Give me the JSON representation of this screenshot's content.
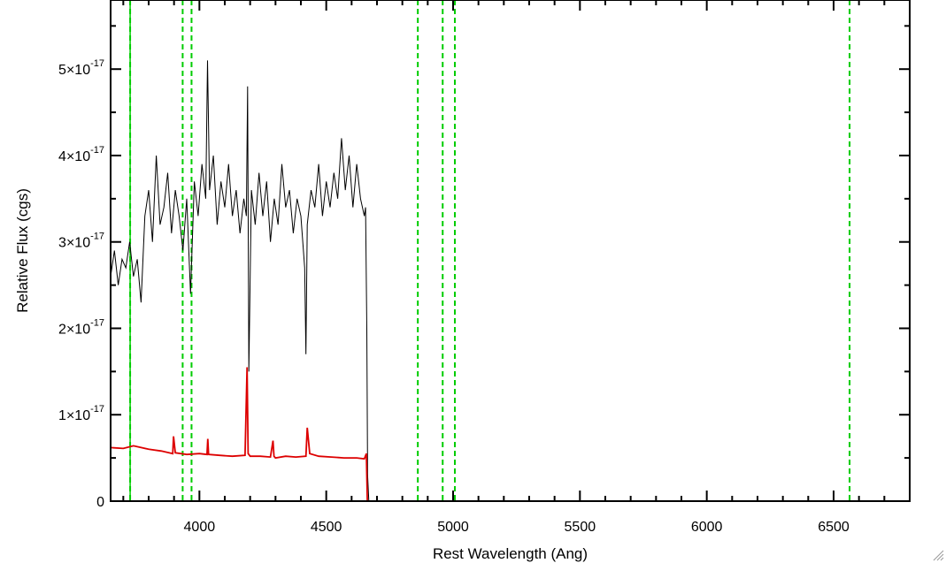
{
  "chart_data": {
    "type": "line",
    "xlabel": "Rest Wavelength (Ang)",
    "ylabel": "Relative Flux (cgs)",
    "xlim": [
      3650,
      6800
    ],
    "ylim": [
      0,
      5.8e-17
    ],
    "x_ticks": [
      {
        "value": 4000,
        "label": "4000"
      },
      {
        "value": 4500,
        "label": "4500"
      },
      {
        "value": 5000,
        "label": "5000"
      },
      {
        "value": 5500,
        "label": "5500"
      },
      {
        "value": 6000,
        "label": "6000"
      },
      {
        "value": 6500,
        "label": "6500"
      }
    ],
    "y_ticks": [
      {
        "value": 0,
        "mantissa": "0",
        "exponent": ""
      },
      {
        "value": 1e-17,
        "mantissa": "1×10",
        "exponent": "-17"
      },
      {
        "value": 2e-17,
        "mantissa": "2×10",
        "exponent": "-17"
      },
      {
        "value": 3e-17,
        "mantissa": "3×10",
        "exponent": "-17"
      },
      {
        "value": 4e-17,
        "mantissa": "4×10",
        "exponent": "-17"
      },
      {
        "value": 5e-17,
        "mantissa": "5×10",
        "exponent": "-17"
      }
    ],
    "reference_lines": [
      {
        "x": 3727,
        "color": "#00cc00",
        "style": "dashed"
      },
      {
        "x": 3934,
        "color": "#00cc00",
        "style": "dashed"
      },
      {
        "x": 3969,
        "color": "#00cc00",
        "style": "dashed"
      },
      {
        "x": 4861,
        "color": "#00cc00",
        "style": "dashed"
      },
      {
        "x": 4959,
        "color": "#00cc00",
        "style": "dashed"
      },
      {
        "x": 5007,
        "color": "#00cc00",
        "style": "dashed"
      },
      {
        "x": 6563,
        "color": "#00cc00",
        "style": "dashed"
      },
      {
        "x": 3727,
        "color": "#00cc00",
        "style": "solid"
      }
    ],
    "series": [
      {
        "color": "#000000",
        "x": [
          3650,
          3665,
          3680,
          3695,
          3710,
          3725,
          3740,
          3755,
          3770,
          3785,
          3800,
          3815,
          3830,
          3845,
          3860,
          3875,
          3890,
          3905,
          3920,
          3935,
          3950,
          3965,
          3980,
          3995,
          4010,
          4025,
          4032,
          4040,
          4055,
          4070,
          4085,
          4100,
          4115,
          4130,
          4145,
          4160,
          4175,
          4185,
          4190,
          4195,
          4205,
          4220,
          4235,
          4250,
          4265,
          4280,
          4295,
          4310,
          4325,
          4340,
          4355,
          4370,
          4385,
          4400,
          4415,
          4420,
          4425,
          4440,
          4455,
          4470,
          4485,
          4500,
          4515,
          4530,
          4545,
          4560,
          4575,
          4590,
          4605,
          4620,
          4635,
          4650,
          4655,
          4660,
          4663,
          4668,
          4700,
          5000,
          5500,
          6000,
          6500,
          6800
        ],
        "y": [
          2.6e-17,
          2.9e-17,
          2.5e-17,
          2.8e-17,
          2.7e-17,
          3e-17,
          2.6e-17,
          2.8e-17,
          2.3e-17,
          3.3e-17,
          3.6e-17,
          3e-17,
          4e-17,
          3.2e-17,
          3.4e-17,
          3.8e-17,
          3.1e-17,
          3.6e-17,
          3.3e-17,
          2.9e-17,
          3.5e-17,
          2.4e-17,
          3.7e-17,
          3.3e-17,
          3.9e-17,
          3.5e-17,
          5.1e-17,
          3.6e-17,
          4e-17,
          3.2e-17,
          3.7e-17,
          3.4e-17,
          3.9e-17,
          3.3e-17,
          3.6e-17,
          3.1e-17,
          3.5e-17,
          3.3e-17,
          4.8e-17,
          1.5e-17,
          3.6e-17,
          3.2e-17,
          3.8e-17,
          3.3e-17,
          3.7e-17,
          3e-17,
          3.5e-17,
          3.2e-17,
          3.9e-17,
          3.4e-17,
          3.6e-17,
          3.1e-17,
          3.5e-17,
          3.3e-17,
          2.7e-17,
          1.7e-17,
          3.2e-17,
          3.6e-17,
          3.4e-17,
          3.9e-17,
          3.3e-17,
          3.7e-17,
          3.4e-17,
          3.8e-17,
          3.5e-17,
          4.2e-17,
          3.6e-17,
          4e-17,
          3.4e-17,
          3.9e-17,
          3.5e-17,
          3.3e-17,
          3.4e-17,
          2e-17,
          3e-18,
          0,
          0,
          0,
          0,
          0,
          0,
          0
        ]
      },
      {
        "color": "#dd0000",
        "x": [
          3650,
          3700,
          3740,
          3800,
          3850,
          3895,
          3898,
          3905,
          3950,
          4000,
          4030,
          4033,
          4036,
          4080,
          4130,
          4180,
          4188,
          4192,
          4200,
          4240,
          4280,
          4290,
          4294,
          4300,
          4340,
          4380,
          4420,
          4425,
          4435,
          4470,
          4520,
          4570,
          4620,
          4650,
          4658,
          4662,
          4665,
          4700,
          5000,
          5500,
          6000,
          6500,
          6800
        ],
        "y": [
          6.2e-18,
          6.1e-18,
          6.4e-18,
          6e-18,
          5.8e-18,
          5.5e-18,
          7.5e-18,
          5.6e-18,
          5.4e-18,
          5.5e-18,
          5.4e-18,
          7.2e-18,
          5.4e-18,
          5.3e-18,
          5.2e-18,
          5.3e-18,
          1.55e-17,
          5.5e-18,
          5.2e-18,
          5.2e-18,
          5.1e-18,
          7e-18,
          5.2e-18,
          5e-18,
          5.2e-18,
          5.1e-18,
          5.2e-18,
          8.5e-18,
          5.5e-18,
          5.2e-18,
          5.1e-18,
          5e-18,
          5e-18,
          4.9e-18,
          5.5e-18,
          0.0,
          0,
          0,
          0,
          0,
          0,
          0,
          0
        ]
      }
    ]
  }
}
